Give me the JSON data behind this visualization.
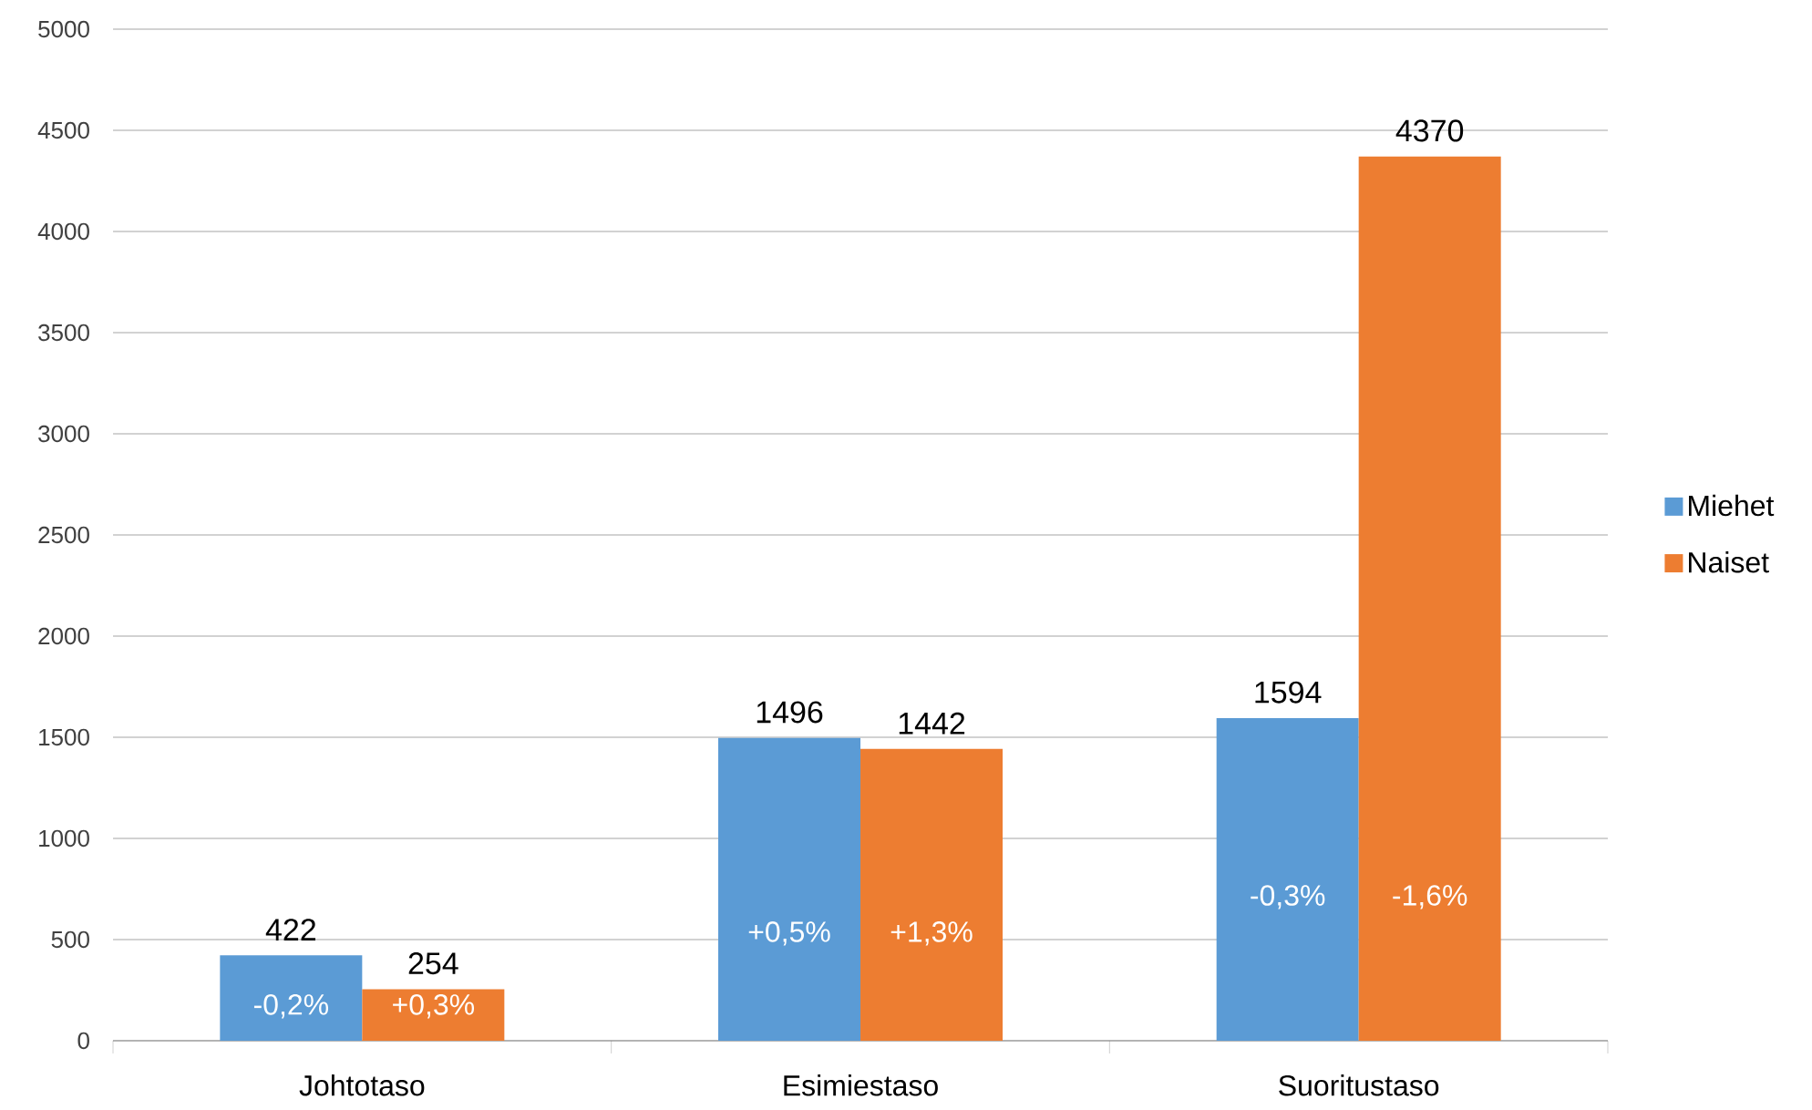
{
  "chart_data": {
    "type": "bar",
    "categories": [
      "Johtotaso",
      "Esimiestaso",
      "Suoritustaso"
    ],
    "series": [
      {
        "name": "Miehet",
        "color": "#5b9bd5",
        "values": [
          422,
          1496,
          1594
        ]
      },
      {
        "name": "Naiset",
        "color": "#ed7d31",
        "values": [
          254,
          1442,
          4370
        ]
      }
    ],
    "ylim": [
      0,
      5000
    ],
    "yticks": [
      0,
      500,
      1000,
      1500,
      2000,
      2500,
      3000,
      3500,
      4000,
      4500,
      5000
    ],
    "grid": "y",
    "legend": "right",
    "data_labels": true,
    "annotations": [
      {
        "text": "-0,2%",
        "x": "Johtotaso",
        "y": 170
      },
      {
        "text": "+0,3%",
        "x": "Johtotaso",
        "y": 170
      },
      {
        "text": "+0,5%",
        "x": "Esimiestaso",
        "y": 530
      },
      {
        "text": "+1,3%",
        "x": "Esimiestaso",
        "y": 530
      },
      {
        "text": "-0,3%",
        "x": "Suoritustaso",
        "y": 710
      },
      {
        "text": "-1,6%",
        "x": "Suoritustaso",
        "y": 710
      }
    ]
  }
}
